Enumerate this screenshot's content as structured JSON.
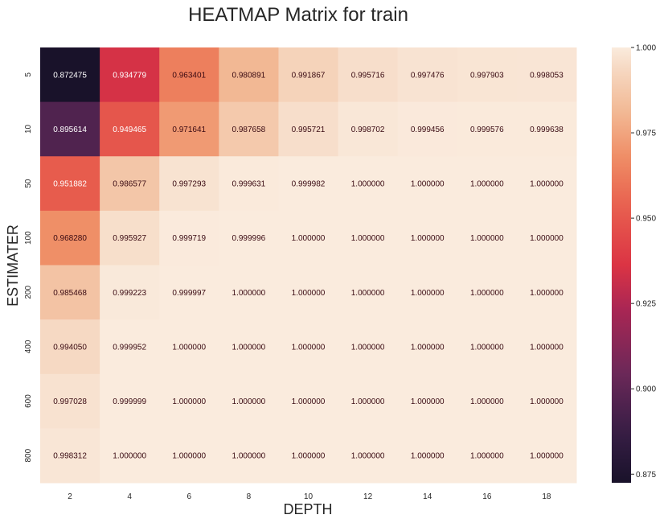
{
  "chart_data": {
    "type": "heatmap",
    "title": "HEATMAP Matrix for train",
    "xlabel": "DEPTH",
    "ylabel": "ESTIMATER",
    "x_categories": [
      "2",
      "4",
      "6",
      "8",
      "10",
      "12",
      "14",
      "16",
      "18"
    ],
    "y_categories": [
      "5",
      "10",
      "50",
      "100",
      "200",
      "400",
      "600",
      "800"
    ],
    "values": [
      [
        0.872475,
        0.934779,
        0.963401,
        0.980891,
        0.991867,
        0.995716,
        0.997476,
        0.997903,
        0.998053
      ],
      [
        0.895614,
        0.949465,
        0.971641,
        0.987658,
        0.995721,
        0.998702,
        0.999456,
        0.999576,
        0.999638
      ],
      [
        0.951882,
        0.986577,
        0.997293,
        0.999631,
        0.999982,
        1.0,
        1.0,
        1.0,
        1.0
      ],
      [
        0.96828,
        0.995927,
        0.999719,
        0.999996,
        1.0,
        1.0,
        1.0,
        1.0,
        1.0
      ],
      [
        0.985468,
        0.999223,
        0.999997,
        1.0,
        1.0,
        1.0,
        1.0,
        1.0,
        1.0
      ],
      [
        0.99405,
        0.999952,
        1.0,
        1.0,
        1.0,
        1.0,
        1.0,
        1.0,
        1.0
      ],
      [
        0.997028,
        0.999999,
        1.0,
        1.0,
        1.0,
        1.0,
        1.0,
        1.0,
        1.0
      ],
      [
        0.998312,
        1.0,
        1.0,
        1.0,
        1.0,
        1.0,
        1.0,
        1.0,
        1.0
      ]
    ],
    "value_format": "6 decimals",
    "vmin": 0.872475,
    "vmax": 1.0,
    "colormap": "rocket",
    "colorbar": {
      "ticks": [
        0.875,
        0.9,
        0.925,
        0.95,
        0.975,
        1.0
      ],
      "tick_labels": [
        "0.875",
        "0.900",
        "0.925",
        "0.950",
        "0.975",
        "1.000"
      ]
    },
    "grid": false,
    "legend": "colorbar-right"
  }
}
